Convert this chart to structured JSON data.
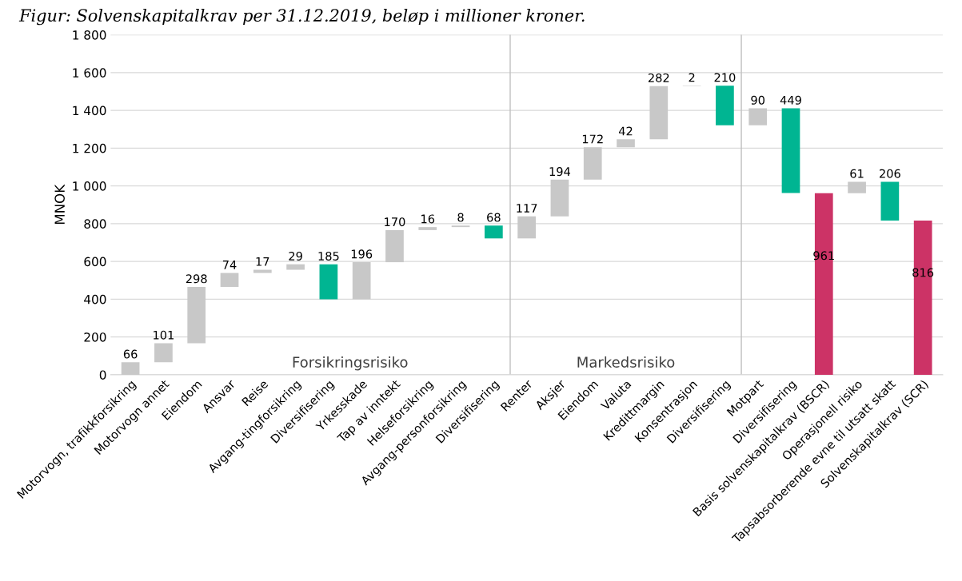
{
  "chart_data": {
    "type": "bar",
    "title": "Figur: Solvenskapitalkrav per 31.12.2019, beløp i millioner kroner.",
    "ylabel": "MNOK",
    "categories": [
      "Motorvogn, trafikkforsikring",
      "Motorvogn annet",
      "Eiendom",
      "Ansvar",
      "Reise",
      "Avgang-tingforsikring",
      "Diversifisering",
      "Yrkesskade",
      "Tap av inntekt",
      "Helseforsikring",
      "Avgang-personforsikring",
      "Diversifisering",
      "Renter",
      "Aksjer",
      "Eiendom",
      "Valuta",
      "Kredittmargin",
      "Konsentrasjon",
      "Diversifisering",
      "Motpart",
      "Diversifisering",
      "Basis solvenskapitalkrav (BSCR)",
      "Operasjonell risiko",
      "Tapsabsorberende evne til utsatt skatt",
      "Solvenskapitalkrav (SCR)"
    ],
    "values": [
      66,
      101,
      298,
      74,
      17,
      29,
      185,
      196,
      170,
      16,
      8,
      68,
      117,
      194,
      172,
      42,
      282,
      2,
      210,
      90,
      449,
      961,
      61,
      206,
      816
    ],
    "base": [
      0,
      66,
      167,
      465,
      539,
      556,
      400,
      400,
      596,
      766,
      782,
      722,
      722,
      839,
      1033,
      1205,
      1247,
      1529,
      1321,
      1321,
      962,
      0,
      961,
      816,
      0
    ],
    "colors": [
      "#c8c8c8",
      "#c8c8c8",
      "#c8c8c8",
      "#c8c8c8",
      "#c8c8c8",
      "#c8c8c8",
      "#00b592",
      "#c8c8c8",
      "#c8c8c8",
      "#c8c8c8",
      "#c8c8c8",
      "#00b592",
      "#c8c8c8",
      "#c8c8c8",
      "#c8c8c8",
      "#c8c8c8",
      "#c8c8c8",
      "#c8c8c8",
      "#00b592",
      "#c8c8c8",
      "#00b592",
      "#cc3366",
      "#c8c8c8",
      "#00b592",
      "#cc3366"
    ],
    "data_labels": true,
    "ylim": [
      0,
      1800
    ],
    "yticks": [
      0,
      {
        "value": 200,
        "label": "200"
      },
      {
        "value": 400,
        "label": "400"
      },
      {
        "value": 600,
        "label": "600"
      },
      {
        "value": 800,
        "label": "800"
      },
      {
        "value": 1000,
        "label": "1 000"
      },
      {
        "value": 1200,
        "label": "1 200"
      },
      {
        "value": 1400,
        "label": "1 400"
      },
      {
        "value": 1600,
        "label": "1 600"
      },
      {
        "value": 1800,
        "label": "1 800"
      }
    ],
    "grid": "y",
    "annotations": [
      "Forsikringsrisiko",
      "Markedsrisiko"
    ]
  }
}
